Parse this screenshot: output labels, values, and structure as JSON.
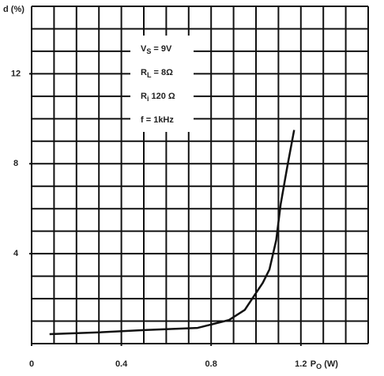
{
  "chart_data": {
    "type": "line",
    "ylabel": "d (%)",
    "xlabel": {
      "main": "P",
      "sub": "O",
      "rest": " (W)"
    },
    "annotations": [
      {
        "main": "V",
        "sub": "S",
        "rest": " = 9V"
      },
      {
        "main": "R",
        "sub": "L",
        "rest": " = 8Ω"
      },
      {
        "main": "R",
        "sub": "i",
        "rest": " 120 Ω"
      },
      {
        "main": "f = 1kHz",
        "sub": "",
        "rest": ""
      }
    ],
    "x": [
      0.08,
      0.3,
      0.5,
      0.74,
      0.88,
      0.95,
      0.99,
      1.03,
      1.06,
      1.09,
      1.11,
      1.14,
      1.17
    ],
    "series": [
      {
        "color": "#111",
        "values": [
          0.42,
          0.5,
          0.6,
          0.7,
          1.05,
          1.5,
          2.1,
          2.7,
          3.3,
          4.6,
          6.2,
          7.9,
          9.5
        ]
      }
    ],
    "xlim": [
      0,
      1.5
    ],
    "ylim": [
      0,
      15
    ],
    "xticks": [
      0,
      0.4,
      0.8,
      1.2
    ],
    "yticks": [
      4,
      8,
      12
    ],
    "xminor": 0.1,
    "yminor": 1,
    "grid": true
  }
}
